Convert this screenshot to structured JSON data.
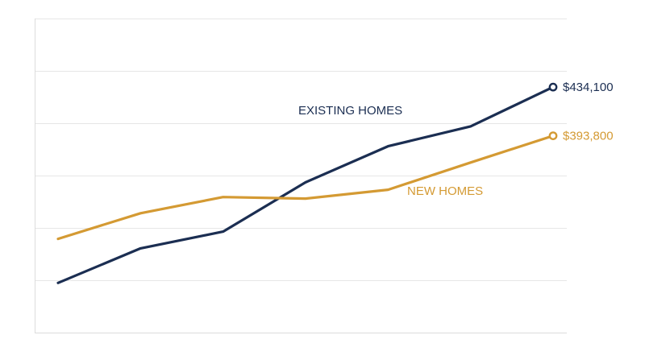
{
  "chart_data": {
    "type": "line",
    "title": "",
    "xlabel": "",
    "ylabel": "",
    "ylim": [
      0,
      6
    ],
    "grid": true,
    "x": [
      0,
      1,
      2,
      3,
      4,
      5,
      6
    ],
    "series": [
      {
        "name": "EXISTING HOMES",
        "color": "#1b2e52",
        "values": [
          0.95,
          1.61,
          1.93,
          2.87,
          3.56,
          3.94,
          4.69
        ],
        "end_label": "$434,100"
      },
      {
        "name": "NEW HOMES",
        "color": "#d49a33",
        "values": [
          1.79,
          2.28,
          2.59,
          2.56,
          2.73,
          3.25,
          3.76
        ],
        "end_label": "$393,800"
      }
    ]
  }
}
